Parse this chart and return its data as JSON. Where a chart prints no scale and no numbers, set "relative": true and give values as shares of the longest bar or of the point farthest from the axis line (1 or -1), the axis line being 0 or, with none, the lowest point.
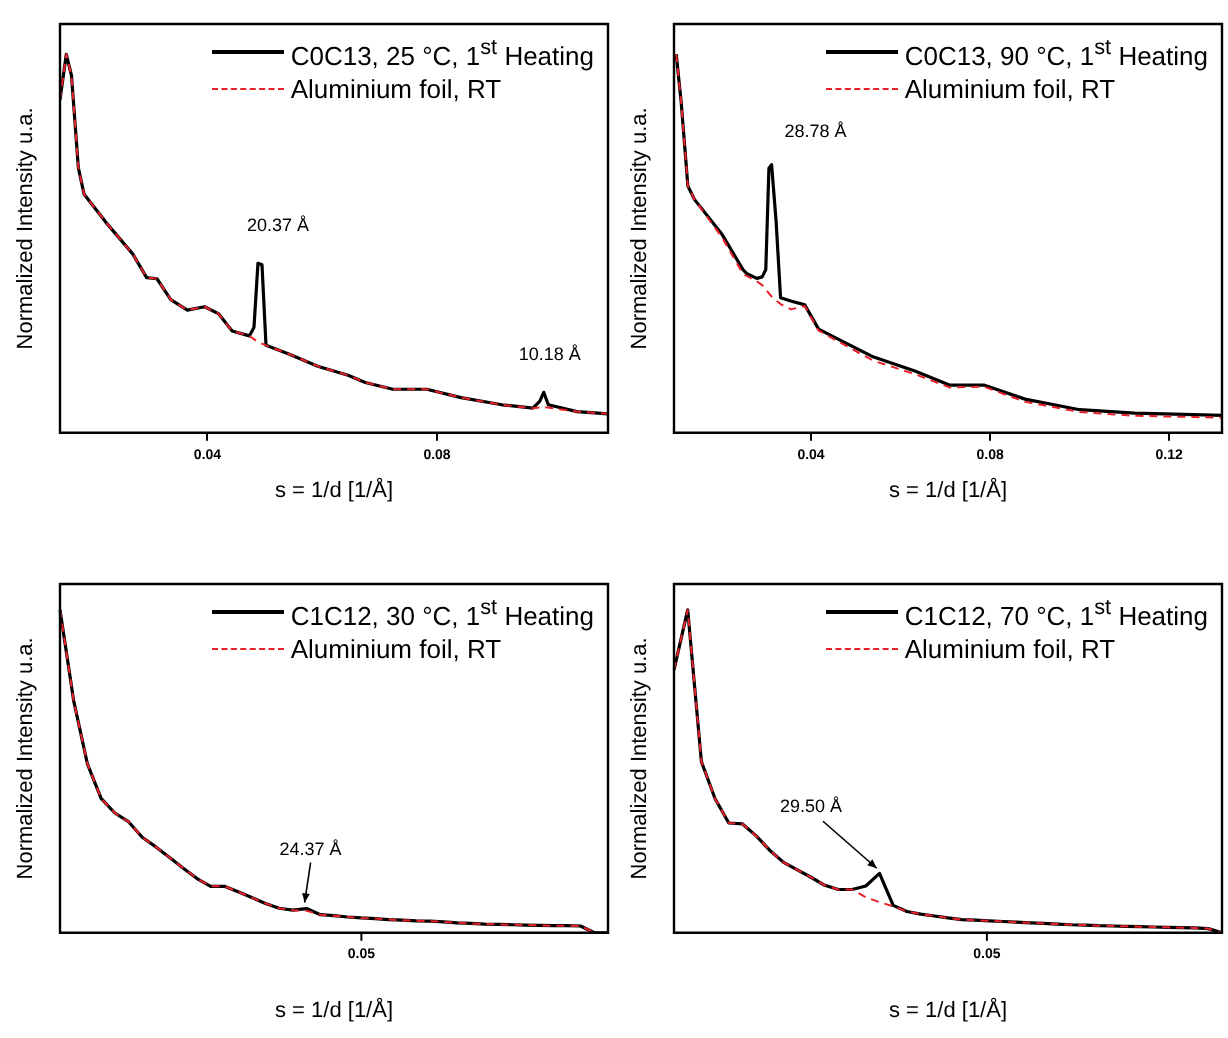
{
  "chart_data": [
    {
      "type": "line",
      "relative": true,
      "xlabel": "s = 1/d [1/Å]",
      "ylabel": "Normalized Intensity u.a.",
      "xlim": [
        0.0143,
        0.1098
      ],
      "xticks": [
        0.04,
        0.08
      ],
      "grid": false,
      "legend": "top right",
      "marker": "none",
      "annotations": [
        {
          "text": "20.37 Å",
          "x": 0.0488,
          "y": 0.448
        },
        {
          "text": "10.18 Å",
          "x": 0.0986,
          "y": 0.107
        }
      ],
      "series": [
        {
          "name": "C0C13, 25 °C, 1$^{st}$ Heating",
          "color": "#000000",
          "line_style": "solid",
          "x": [
            0.0143,
            0.0154,
            0.0163,
            0.0175,
            0.0185,
            0.0223,
            0.027,
            0.0294,
            0.0312,
            0.0336,
            0.0365,
            0.0395,
            0.0419,
            0.0443,
            0.0473,
            0.0481,
            0.0488,
            0.0495,
            0.0502,
            0.0544,
            0.0592,
            0.0645,
            0.0675,
            0.0723,
            0.0782,
            0.0842,
            0.0913,
            0.0967,
            0.0979,
            0.0986,
            0.0994,
            0.1044,
            0.1098
          ],
          "values": [
            0.88,
            1.0,
            0.944,
            0.7,
            0.63,
            0.556,
            0.472,
            0.41,
            0.407,
            0.352,
            0.324,
            0.333,
            0.315,
            0.269,
            0.256,
            0.278,
            0.448,
            0.444,
            0.231,
            0.207,
            0.176,
            0.152,
            0.133,
            0.115,
            0.115,
            0.093,
            0.074,
            0.065,
            0.083,
            0.107,
            0.074,
            0.056,
            0.05
          ]
        },
        {
          "name": "Aluminium foil, RT",
          "color": "#e8202a",
          "line_style": "dashed",
          "x": [
            0.0143,
            0.0154,
            0.0163,
            0.0175,
            0.0185,
            0.0223,
            0.027,
            0.0294,
            0.0312,
            0.0336,
            0.0365,
            0.0395,
            0.0419,
            0.0443,
            0.0473,
            0.0488,
            0.0502,
            0.0544,
            0.0592,
            0.0645,
            0.0675,
            0.0723,
            0.0782,
            0.0842,
            0.0913,
            0.0967,
            0.0986,
            0.1044,
            0.1098
          ],
          "values": [
            0.88,
            1.0,
            0.944,
            0.7,
            0.63,
            0.556,
            0.472,
            0.41,
            0.407,
            0.352,
            0.324,
            0.333,
            0.315,
            0.269,
            0.256,
            0.24,
            0.231,
            0.207,
            0.176,
            0.152,
            0.133,
            0.115,
            0.115,
            0.093,
            0.074,
            0.065,
            0.068,
            0.056,
            0.05
          ]
        }
      ]
    },
    {
      "type": "line",
      "relative": true,
      "xlabel": "s = 1/d [1/Å]",
      "ylabel": "Normalized Intensity u.a.",
      "xlim": [
        0.0094,
        0.1318
      ],
      "xticks": [
        0.04,
        0.08,
        0.12
      ],
      "grid": false,
      "legend": "top right",
      "marker": "none",
      "annotations": [
        {
          "text": "28.78 Å",
          "x": 0.0312,
          "y": 0.708
        }
      ],
      "series": [
        {
          "name": "C0C13, 90 °C, 1$^{st}$ Heating",
          "color": "#000000",
          "line_style": "solid",
          "x": [
            0.0099,
            0.011,
            0.0125,
            0.014,
            0.0202,
            0.0248,
            0.0256,
            0.0279,
            0.0291,
            0.0299,
            0.0306,
            0.0312,
            0.0322,
            0.0332,
            0.0355,
            0.0386,
            0.0417,
            0.0478,
            0.054,
            0.0632,
            0.0709,
            0.0786,
            0.0878,
            0.1,
            0.1123,
            0.1318
          ],
          "values": [
            1.0,
            0.874,
            0.652,
            0.616,
            0.523,
            0.431,
            0.421,
            0.408,
            0.412,
            0.431,
            0.699,
            0.708,
            0.56,
            0.357,
            0.348,
            0.338,
            0.274,
            0.237,
            0.2,
            0.163,
            0.126,
            0.126,
            0.089,
            0.061,
            0.052,
            0.046
          ]
        },
        {
          "name": "Aluminium foil, RT",
          "color": "#e8202a",
          "line_style": "dashed",
          "x": [
            0.0099,
            0.011,
            0.0125,
            0.014,
            0.0202,
            0.0248,
            0.0279,
            0.0291,
            0.0312,
            0.0332,
            0.0355,
            0.0386,
            0.0417,
            0.0478,
            0.054,
            0.0632,
            0.0709,
            0.0786,
            0.0878,
            0.1,
            0.1123,
            0.1318
          ],
          "values": [
            1.0,
            0.874,
            0.652,
            0.616,
            0.515,
            0.42,
            0.4,
            0.39,
            0.36,
            0.34,
            0.326,
            0.335,
            0.27,
            0.23,
            0.19,
            0.155,
            0.12,
            0.122,
            0.082,
            0.055,
            0.045,
            0.04
          ]
        }
      ]
    },
    {
      "type": "line",
      "relative": true,
      "xlabel": "s = 1/d [1/Å]",
      "ylabel": "Normalized Intensity u.a.",
      "categories": [
        null,
        null,
        null,
        null,
        null,
        null,
        null,
        null,
        null,
        null,
        null,
        null,
        null,
        null,
        null,
        null,
        null,
        null,
        null,
        null,
        null,
        null,
        null,
        null,
        null,
        null,
        null,
        null,
        null,
        null,
        null,
        null,
        null,
        null,
        null,
        null,
        null,
        null,
        null,
        null,
        null
      ],
      "grid": false,
      "legend": "top right",
      "marker": "none",
      "annotations": [
        {
          "text": "24.37 Å",
          "y": 0.075
        },
        "0.05"
      ],
      "series": [
        {
          "name": "C1C12, 30 °C, 1$^{st}$ Heating",
          "color": "#000000",
          "line_style": "solid",
          "values": [
            1.0,
            0.718,
            0.523,
            0.416,
            0.371,
            0.344,
            0.296,
            0.266,
            0.233,
            0.2,
            0.168,
            0.144,
            0.144,
            0.127,
            0.109,
            0.091,
            0.076,
            0.07,
            0.075,
            0.056,
            0.053,
            0.049,
            0.046,
            0.044,
            0.041,
            0.039,
            0.037,
            0.036,
            0.034,
            0.031,
            0.029,
            0.027,
            0.026,
            0.025,
            0.024,
            0.023,
            0.022,
            0.022,
            0.021,
            0,
            0
          ]
        },
        {
          "name": "Aluminium foil, RT",
          "color": "#e8202a",
          "line_style": "dashed",
          "values": [
            1.0,
            0.718,
            0.523,
            0.416,
            0.371,
            0.344,
            0.296,
            0.266,
            0.233,
            0.2,
            0.168,
            0.144,
            0.144,
            0.127,
            0.109,
            0.091,
            0.076,
            0.07,
            0.068,
            0.056,
            0.053,
            0.049,
            0.046,
            0.044,
            0.041,
            0.039,
            0.037,
            0.036,
            0.034,
            0.031,
            0.029,
            0.027,
            0.026,
            0.025,
            0.024,
            0.023,
            0.022,
            0.022,
            0.021,
            0,
            0
          ]
        }
      ]
    },
    {
      "type": "line",
      "relative": true,
      "xlabel": "s = 1/d [1/Å]",
      "ylabel": "Normalized Intensity u.a.",
      "categories": [
        null,
        null,
        null,
        null,
        null,
        null,
        null,
        null,
        null,
        null,
        null,
        null,
        null,
        null,
        null,
        null,
        null,
        null,
        null,
        null,
        null,
        null,
        null,
        null,
        null,
        null,
        null,
        null,
        null,
        null,
        null,
        null,
        null,
        null,
        null,
        null,
        null,
        null,
        null,
        null,
        null
      ],
      "grid": false,
      "legend": "top right",
      "marker": "none",
      "annotations": [
        "29.50 Å",
        "0.05"
      ],
      "series": [
        {
          "name": "C1C12, 70 °C, 1$^{st}$ Heating",
          "color": "#000000",
          "line_style": "solid",
          "values": [
            0.814,
            1.0,
            0.53,
            0.415,
            0.34,
            0.337,
            0.3,
            0.255,
            0.218,
            0.195,
            0.172,
            0.147,
            0.134,
            0.134,
            0.145,
            0.184,
            0.085,
            0.066,
            0.058,
            0.052,
            0.046,
            0.041,
            0.039,
            0.037,
            0.035,
            0.033,
            0.031,
            0.029,
            0.027,
            0.025,
            0.024,
            0.022,
            0.021,
            0.02,
            0.019,
            0.018,
            0.017,
            0.016,
            0.015,
            0.013,
            0
          ]
        },
        {
          "name": "Aluminium foil, RT",
          "color": "#e8202a",
          "line_style": "dashed",
          "values": [
            0.814,
            1.0,
            0.53,
            0.415,
            0.34,
            0.337,
            0.3,
            0.255,
            0.218,
            0.195,
            0.172,
            0.147,
            0.134,
            0.134,
            0.11,
            0.095,
            0.082,
            0.066,
            0.058,
            0.052,
            0.046,
            0.041,
            0.039,
            0.037,
            0.035,
            0.033,
            0.031,
            0.029,
            0.027,
            0.025,
            0.024,
            0.022,
            0.021,
            0.02,
            0.019,
            0.018,
            0.017,
            0.016,
            0.015,
            0.013,
            0
          ]
        }
      ]
    }
  ]
}
